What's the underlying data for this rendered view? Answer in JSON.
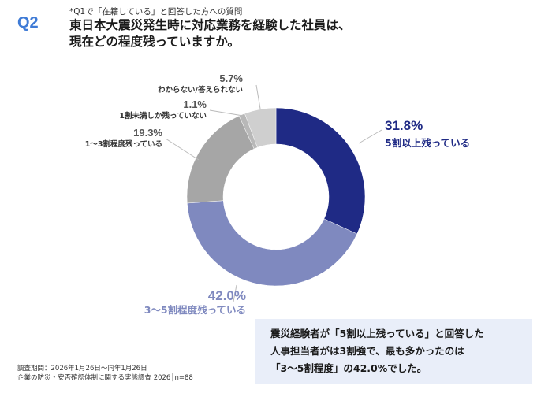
{
  "header": {
    "question_no": "Q2",
    "note": "*Q1で「在籍している」と回答した方への質問",
    "title_line1": "東日本大震災発生時に対応業務を経験した社員は、",
    "title_line2": "現在どの程度残っていますか。"
  },
  "chart_data": {
    "type": "pie",
    "donut": true,
    "start": "top",
    "direction": "clockwise",
    "slices": [
      {
        "label": "5割以上残っている",
        "value": 31.8,
        "display": "31.8%",
        "color": "#1f2a85"
      },
      {
        "label": "3～5割程度残っている",
        "value": 42.0,
        "display": "42.0%",
        "color": "#7f89bf"
      },
      {
        "label": "1～3割程度残っている",
        "value": 19.3,
        "display": "19.3%",
        "color": "#a6a6a6"
      },
      {
        "label": "1割未満しか残っていない",
        "value": 1.1,
        "display": "1.1%",
        "color": "#b8b8b8"
      },
      {
        "label": "わからない/答えられない",
        "value": 5.7,
        "display": "5.7%",
        "color": "#cfcfcf"
      }
    ]
  },
  "summary": {
    "line1": "震災経験者が「5割以上残っている」と回答した",
    "line2": "人事担当者がは3割強で、最も多かったのは",
    "line3": "「3～5割程度」の42.0%でした。"
  },
  "footer": {
    "line1": "調査期間：2026年1月26日～同年1月26日",
    "line2": "企業の防災・安否確認体制に関する実態調査 2026│n=88"
  }
}
